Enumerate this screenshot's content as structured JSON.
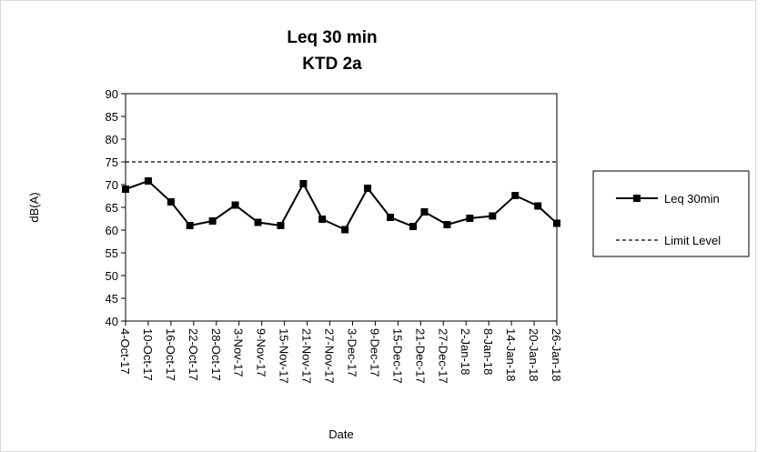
{
  "chart_data": {
    "type": "line",
    "title": "Leq 30 min",
    "subtitle": "KTD 2a",
    "x_label": "Date",
    "y_label": "dB(A)",
    "x": [
      "2017-10-04",
      "2017-10-10",
      "2017-10-16",
      "2017-10-21",
      "2017-10-27",
      "2017-11-02",
      "2017-11-08",
      "2017-11-14",
      "2017-11-20",
      "2017-11-25",
      "2017-12-01",
      "2017-12-07",
      "2017-12-13",
      "2017-12-19",
      "2017-12-22",
      "2017-12-28",
      "2018-01-03",
      "2018-01-09",
      "2018-01-15",
      "2018-01-21",
      "2018-01-26"
    ],
    "series": [
      {
        "name": "Leq 30min",
        "color": "#000000",
        "marker": "square",
        "line_style": "solid",
        "values": [
          69,
          70.8,
          66.2,
          61,
          62,
          65.5,
          61.7,
          61,
          70.2,
          62.4,
          60.1,
          69.2,
          62.8,
          60.8,
          64,
          61.2,
          62.6,
          63.1,
          67.6,
          65.3,
          61.5
        ]
      },
      {
        "name": "Limit Level",
        "color": "#000000",
        "marker": "none",
        "line_style": "dashed",
        "values": [
          75,
          75,
          75,
          75,
          75,
          75,
          75,
          75,
          75,
          75,
          75,
          75,
          75,
          75,
          75,
          75,
          75,
          75,
          75,
          75,
          75
        ]
      }
    ],
    "xlim": [
      "2017-10-04",
      "2018-01-26"
    ],
    "xticks": [
      {
        "value": "2017-10-04",
        "label": "4-Oct-17"
      },
      {
        "value": "2017-10-10",
        "label": "10-Oct-17"
      },
      {
        "value": "2017-10-16",
        "label": "16-Oct-17"
      },
      {
        "value": "2017-10-22",
        "label": "22-Oct-17"
      },
      {
        "value": "2017-10-28",
        "label": "28-Oct-17"
      },
      {
        "value": "2017-11-03",
        "label": "3-Nov-17"
      },
      {
        "value": "2017-11-09",
        "label": "9-Nov-17"
      },
      {
        "value": "2017-11-15",
        "label": "15-Nov-17"
      },
      {
        "value": "2017-11-21",
        "label": "21-Nov-17"
      },
      {
        "value": "2017-11-27",
        "label": "27-Nov-17"
      },
      {
        "value": "2017-12-03",
        "label": "3-Dec-17"
      },
      {
        "value": "2017-12-09",
        "label": "9-Dec-17"
      },
      {
        "value": "2017-12-15",
        "label": "15-Dec-17"
      },
      {
        "value": "2017-12-21",
        "label": "21-Dec-17"
      },
      {
        "value": "2017-12-27",
        "label": "27-Dec-17"
      },
      {
        "value": "2018-01-02",
        "label": "2-Jan-18"
      },
      {
        "value": "2018-01-08",
        "label": "8-Jan-18"
      },
      {
        "value": "2018-01-14",
        "label": "14-Jan-18"
      },
      {
        "value": "2018-01-20",
        "label": "20-Jan-18"
      },
      {
        "value": "2018-01-26",
        "label": "26-Jan-18"
      }
    ],
    "ylim": [
      40,
      90
    ],
    "yticks": [
      40,
      45,
      50,
      55,
      60,
      65,
      70,
      75,
      80,
      85,
      90
    ],
    "grid": false,
    "legend": "right"
  }
}
